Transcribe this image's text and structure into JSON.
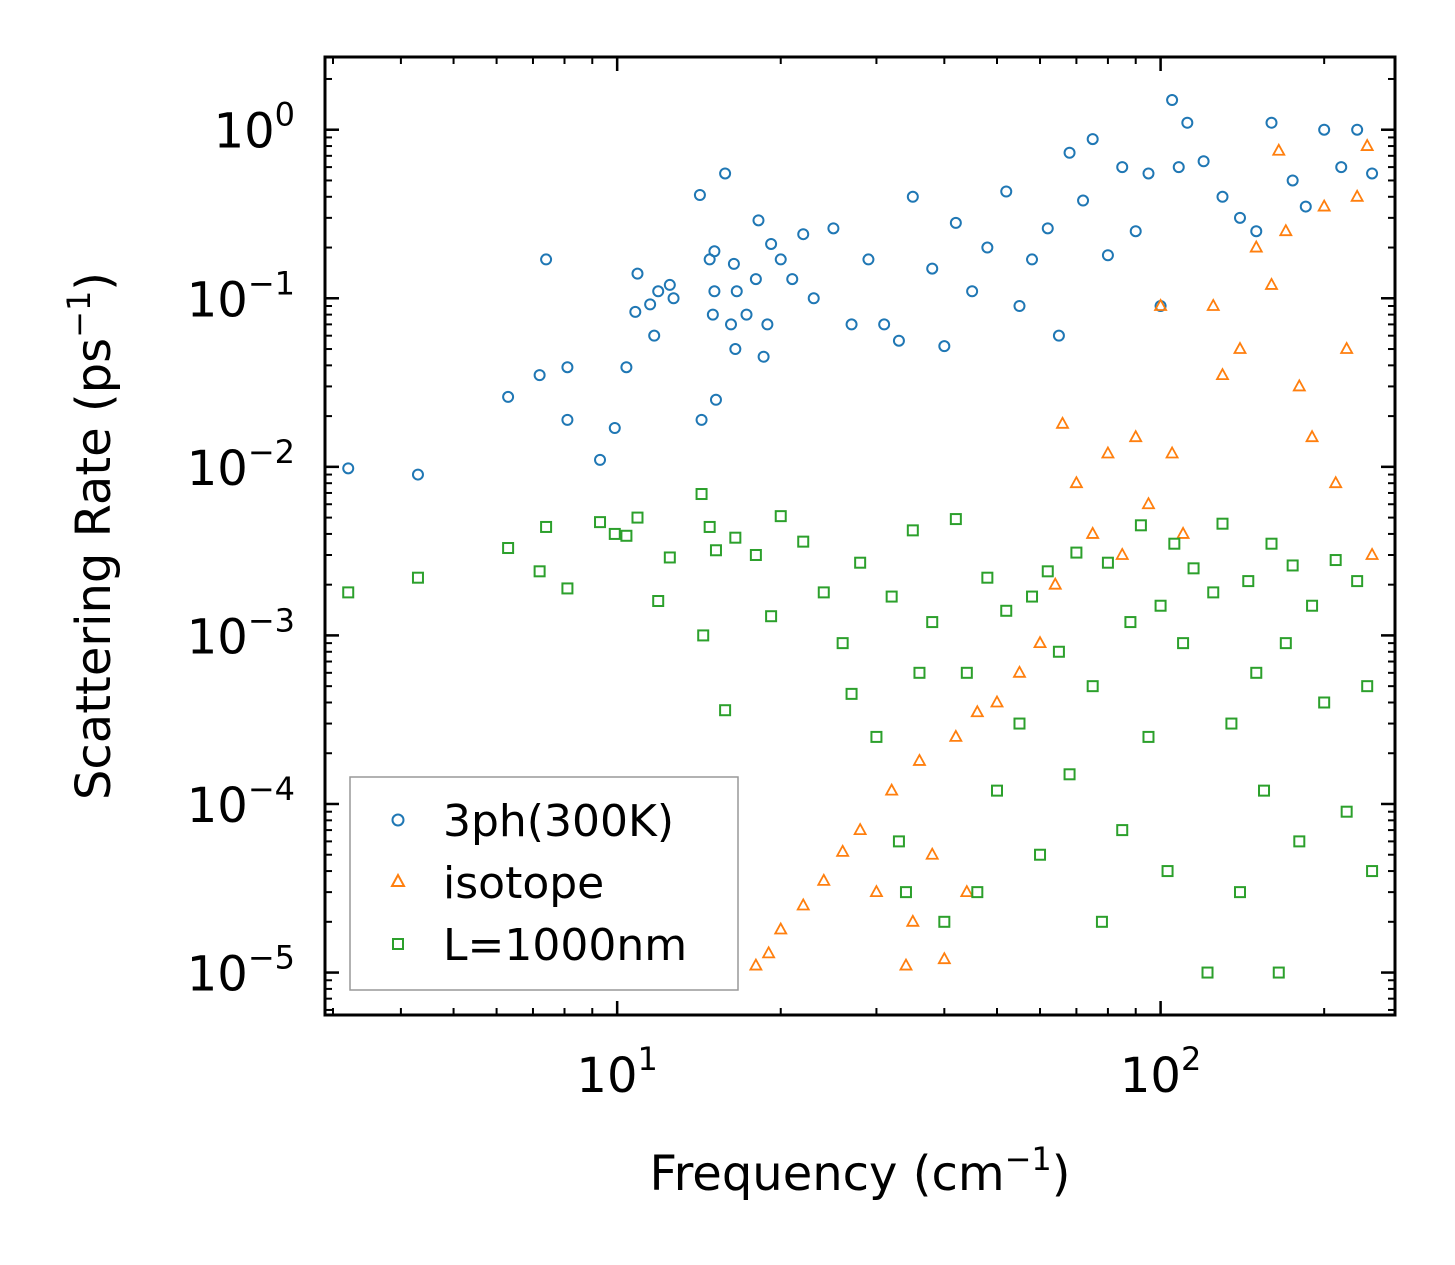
{
  "chart_data": {
    "type": "scatter",
    "title": "",
    "xlabel": {
      "base": "Frequency (cm",
      "sup": "−1",
      "tail": ")"
    },
    "ylabel": {
      "base": "Scattering Rate (ps",
      "sup": "−1",
      "tail": ")"
    },
    "xscale": "log",
    "yscale": "log",
    "xlim": [
      2.9,
      270
    ],
    "ylim": [
      5.6e-06,
      2.7
    ],
    "x_ticks": [
      {
        "value": 10,
        "base": "10",
        "exp": "1"
      },
      {
        "value": 100,
        "base": "10",
        "exp": "2"
      }
    ],
    "y_ticks": [
      {
        "value": 1,
        "base": "10",
        "exp": "0"
      },
      {
        "value": 0.1,
        "base": "10",
        "exp": "−1"
      },
      {
        "value": 0.01,
        "base": "10",
        "exp": "−2"
      },
      {
        "value": 0.001,
        "base": "10",
        "exp": "−3"
      },
      {
        "value": 0.0001,
        "base": "10",
        "exp": "−4"
      },
      {
        "value": 1e-05,
        "base": "10",
        "exp": "−5"
      }
    ],
    "legend": {
      "placement": "lower-left"
    },
    "series": [
      {
        "name": "3ph(300K)",
        "marker": "circle",
        "color": "#1f77b4",
        "points": [
          [
            3.2,
            0.0098
          ],
          [
            4.3,
            0.009
          ],
          [
            6.3,
            0.026
          ],
          [
            7.2,
            0.035
          ],
          [
            7.4,
            0.17
          ],
          [
            8.1,
            0.039
          ],
          [
            8.1,
            0.019
          ],
          [
            9.3,
            0.011
          ],
          [
            9.9,
            0.017
          ],
          [
            10.4,
            0.039
          ],
          [
            10.8,
            0.083
          ],
          [
            10.9,
            0.14
          ],
          [
            11.5,
            0.092
          ],
          [
            11.7,
            0.06
          ],
          [
            11.9,
            0.11
          ],
          [
            12.5,
            0.12
          ],
          [
            12.7,
            0.1
          ],
          [
            14.2,
            0.41
          ],
          [
            14.3,
            0.019
          ],
          [
            14.8,
            0.17
          ],
          [
            15.0,
            0.08
          ],
          [
            15.1,
            0.19
          ],
          [
            15.1,
            0.11
          ],
          [
            15.2,
            0.025
          ],
          [
            15.8,
            0.55
          ],
          [
            16.2,
            0.07
          ],
          [
            16.4,
            0.16
          ],
          [
            16.5,
            0.05
          ],
          [
            16.6,
            0.11
          ],
          [
            17.3,
            0.08
          ],
          [
            18.0,
            0.13
          ],
          [
            18.2,
            0.29
          ],
          [
            18.6,
            0.045
          ],
          [
            18.9,
            0.07
          ],
          [
            19.2,
            0.21
          ],
          [
            20.0,
            0.17
          ],
          [
            21.0,
            0.13
          ],
          [
            22.0,
            0.24
          ],
          [
            23.0,
            0.1
          ],
          [
            25.0,
            0.26
          ],
          [
            27.0,
            0.07
          ],
          [
            29.0,
            0.17
          ],
          [
            31.0,
            0.07
          ],
          [
            33.0,
            0.056
          ],
          [
            35.0,
            0.4
          ],
          [
            38.0,
            0.15
          ],
          [
            40.0,
            0.052
          ],
          [
            42.0,
            0.28
          ],
          [
            45.0,
            0.11
          ],
          [
            48.0,
            0.2
          ],
          [
            52.0,
            0.43
          ],
          [
            55.0,
            0.09
          ],
          [
            58.0,
            0.17
          ],
          [
            62.0,
            0.26
          ],
          [
            65.0,
            0.06
          ],
          [
            68.0,
            0.73
          ],
          [
            72.0,
            0.38
          ],
          [
            75.0,
            0.88
          ],
          [
            80.0,
            0.18
          ],
          [
            85.0,
            0.6
          ],
          [
            90.0,
            0.25
          ],
          [
            95.0,
            0.55
          ],
          [
            100.0,
            0.09
          ],
          [
            105.0,
            1.5
          ],
          [
            108.0,
            0.6
          ],
          [
            112.0,
            1.1
          ],
          [
            120.0,
            0.65
          ],
          [
            130.0,
            0.4
          ],
          [
            140.0,
            0.3
          ],
          [
            150.0,
            0.25
          ],
          [
            160.0,
            1.1
          ],
          [
            175.0,
            0.5
          ],
          [
            185.0,
            0.35
          ],
          [
            200.0,
            1.0
          ],
          [
            215.0,
            0.6
          ],
          [
            230.0,
            1.0
          ],
          [
            245.0,
            0.55
          ]
        ]
      },
      {
        "name": "isotope",
        "marker": "triangle",
        "color": "#ff7f0e",
        "points": [
          [
            18.0,
            1.1e-05
          ],
          [
            19.0,
            1.3e-05
          ],
          [
            20.0,
            1.8e-05
          ],
          [
            22.0,
            2.5e-05
          ],
          [
            24.0,
            3.5e-05
          ],
          [
            26.0,
            5.2e-05
          ],
          [
            28.0,
            7e-05
          ],
          [
            30.0,
            3e-05
          ],
          [
            32.0,
            0.00012
          ],
          [
            34.0,
            1.1e-05
          ],
          [
            35.0,
            2e-05
          ],
          [
            36.0,
            0.00018
          ],
          [
            38.0,
            5e-05
          ],
          [
            40.0,
            1.2e-05
          ],
          [
            42.0,
            0.00025
          ],
          [
            44.0,
            3e-05
          ],
          [
            46.0,
            0.00035
          ],
          [
            50.0,
            0.0004
          ],
          [
            55.0,
            0.0006
          ],
          [
            60.0,
            0.0009
          ],
          [
            64.0,
            0.002
          ],
          [
            66.0,
            0.018
          ],
          [
            70.0,
            0.008
          ],
          [
            75.0,
            0.004
          ],
          [
            80.0,
            0.012
          ],
          [
            85.0,
            0.003
          ],
          [
            90.0,
            0.015
          ],
          [
            95.0,
            0.006
          ],
          [
            100.0,
            0.09
          ],
          [
            105.0,
            0.012
          ],
          [
            110.0,
            0.004
          ],
          [
            125.0,
            0.09
          ],
          [
            130.0,
            0.035
          ],
          [
            140.0,
            0.05
          ],
          [
            150.0,
            0.2
          ],
          [
            160.0,
            0.12
          ],
          [
            165.0,
            0.75
          ],
          [
            170.0,
            0.25
          ],
          [
            180.0,
            0.03
          ],
          [
            190.0,
            0.015
          ],
          [
            200.0,
            0.35
          ],
          [
            210.0,
            0.008
          ],
          [
            220.0,
            0.05
          ],
          [
            230.0,
            0.4
          ],
          [
            240.0,
            0.8
          ],
          [
            245.0,
            0.003
          ]
        ]
      },
      {
        "name": "L=1000nm",
        "marker": "square",
        "color": "#2ca02c",
        "points": [
          [
            3.2,
            0.0018
          ],
          [
            4.3,
            0.0022
          ],
          [
            6.3,
            0.0033
          ],
          [
            7.2,
            0.0024
          ],
          [
            7.4,
            0.0044
          ],
          [
            8.1,
            0.0019
          ],
          [
            9.3,
            0.0047
          ],
          [
            9.9,
            0.004
          ],
          [
            10.4,
            0.0039
          ],
          [
            10.9,
            0.005
          ],
          [
            11.9,
            0.0016
          ],
          [
            12.5,
            0.0029
          ],
          [
            14.3,
            0.0069
          ],
          [
            14.4,
            0.001
          ],
          [
            14.8,
            0.0044
          ],
          [
            15.2,
            0.0032
          ],
          [
            15.8,
            0.00036
          ],
          [
            16.5,
            0.0038
          ],
          [
            18.0,
            0.003
          ],
          [
            19.2,
            0.0013
          ],
          [
            20.0,
            0.0051
          ],
          [
            22.0,
            0.0036
          ],
          [
            24.0,
            0.0018
          ],
          [
            26.0,
            0.0009
          ],
          [
            27.0,
            0.00045
          ],
          [
            28.0,
            0.0027
          ],
          [
            30.0,
            0.00025
          ],
          [
            32.0,
            0.0017
          ],
          [
            33.0,
            6e-05
          ],
          [
            34.0,
            3e-05
          ],
          [
            35.0,
            0.0042
          ],
          [
            36.0,
            0.0006
          ],
          [
            38.0,
            0.0012
          ],
          [
            40.0,
            2e-05
          ],
          [
            42.0,
            0.0049
          ],
          [
            44.0,
            0.0006
          ],
          [
            46.0,
            3e-05
          ],
          [
            48.0,
            0.0022
          ],
          [
            50.0,
            0.00012
          ],
          [
            52.0,
            0.0014
          ],
          [
            55.0,
            0.0003
          ],
          [
            58.0,
            0.0017
          ],
          [
            60.0,
            5e-05
          ],
          [
            62.0,
            0.0024
          ],
          [
            65.0,
            0.0008
          ],
          [
            68.0,
            0.00015
          ],
          [
            70.0,
            0.0031
          ],
          [
            75.0,
            0.0005
          ],
          [
            78.0,
            2e-05
          ],
          [
            80.0,
            0.0027
          ],
          [
            85.0,
            7e-05
          ],
          [
            88.0,
            0.0012
          ],
          [
            92.0,
            0.0045
          ],
          [
            95.0,
            0.00025
          ],
          [
            100.0,
            0.0015
          ],
          [
            103.0,
            4e-05
          ],
          [
            106.0,
            0.0035
          ],
          [
            110.0,
            0.0009
          ],
          [
            115.0,
            0.0025
          ],
          [
            122.0,
            1e-05
          ],
          [
            125.0,
            0.0018
          ],
          [
            130.0,
            0.0046
          ],
          [
            135.0,
            0.0003
          ],
          [
            140.0,
            3e-05
          ],
          [
            145.0,
            0.0021
          ],
          [
            150.0,
            0.0006
          ],
          [
            155.0,
            0.00012
          ],
          [
            160.0,
            0.0035
          ],
          [
            165.0,
            1e-05
          ],
          [
            170.0,
            0.0009
          ],
          [
            175.0,
            0.0026
          ],
          [
            180.0,
            6e-05
          ],
          [
            190.0,
            0.0015
          ],
          [
            200.0,
            0.0004
          ],
          [
            210.0,
            0.0028
          ],
          [
            220.0,
            9e-05
          ],
          [
            230.0,
            0.0021
          ],
          [
            240.0,
            0.0005
          ],
          [
            245.0,
            4e-05
          ]
        ]
      }
    ]
  }
}
